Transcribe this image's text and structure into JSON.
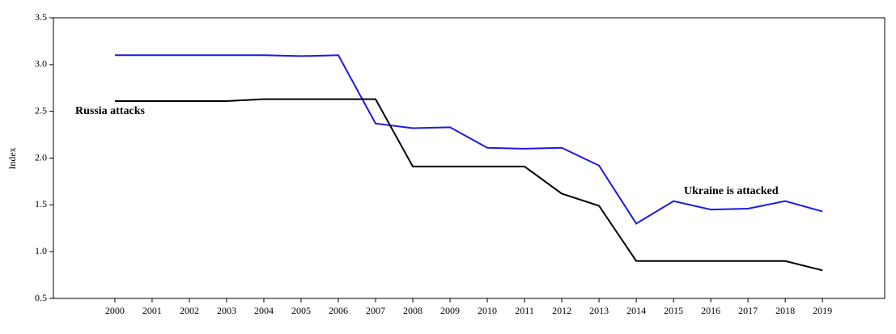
{
  "chart_data": {
    "type": "line",
    "y_label": "Index",
    "annotations": [
      "Russia attacks",
      "Ukraine is attacked"
    ],
    "x": [
      2000,
      2001,
      2002,
      2003,
      2004,
      2005,
      2006,
      2007,
      2008,
      2009,
      2010,
      2011,
      2012,
      2013,
      2014,
      2015,
      2016,
      2017,
      2018,
      2019
    ],
    "xlim": [
      1998.35,
      2020.67
    ],
    "xticks": [
      2000,
      2001,
      2002,
      2003,
      2004,
      2005,
      2006,
      2007,
      2008,
      2009,
      2010,
      2011,
      2012,
      2013,
      2014,
      2015,
      2016,
      2017,
      2018,
      2019
    ],
    "ylim": [
      0.5,
      3.5
    ],
    "yticks": [
      0.5,
      {
        "value": 1,
        "label": "1.0"
      },
      1.5,
      {
        "value": 2,
        "label": "2.0"
      },
      2.5,
      {
        "value": 3,
        "label": "3.0"
      },
      3.5
    ],
    "grid": false,
    "series": [
      {
        "color": "#1a1ae6",
        "values": [
          3.1,
          3.1,
          3.1,
          3.1,
          3.1,
          3.09,
          3.1,
          2.37,
          2.32,
          2.33,
          2.11,
          2.1,
          2.11,
          1.92,
          1.3,
          1.54,
          1.45,
          1.46,
          1.54,
          1.43
        ]
      },
      {
        "color": "#000000",
        "values": [
          2.61,
          2.61,
          2.61,
          2.61,
          2.63,
          2.63,
          2.63,
          2.63,
          1.91,
          1.91,
          1.91,
          1.91,
          1.62,
          1.49,
          0.9,
          0.9,
          0.9,
          0.9,
          0.9,
          0.8
        ]
      }
    ]
  }
}
